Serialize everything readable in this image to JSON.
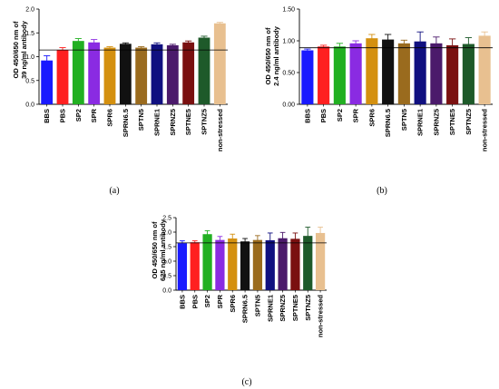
{
  "colors": [
    "#1a1aff",
    "#ff2020",
    "#22b022",
    "#8a2be2",
    "#d4900f",
    "#111111",
    "#9a6b1e",
    "#101080",
    "#4b1a6b",
    "#7a1010",
    "#1e5a2a",
    "#e8c090"
  ],
  "chart_data": [
    {
      "type": "bar",
      "panel_label": "(a)",
      "ylabel_lines": [
        "OD 450/650 nm of",
        "39 ng/ml antibody"
      ],
      "categories": [
        "BBS",
        "PBS",
        "SP2",
        "SPR",
        "SPR6",
        "SPRN6.5",
        "SPTN5",
        "SPRNE1",
        "SPRNZ5",
        "SPTNE5",
        "SPTNZ5",
        "non-stressed"
      ],
      "values": [
        0.92,
        1.14,
        1.33,
        1.3,
        1.19,
        1.27,
        1.19,
        1.26,
        1.24,
        1.3,
        1.4,
        1.7
      ],
      "errors": [
        0.1,
        0.05,
        0.05,
        0.06,
        0.02,
        0.02,
        0.02,
        0.03,
        0.02,
        0.03,
        0.03,
        0.02
      ],
      "reference_line": 1.14,
      "ylim": [
        0,
        2.0
      ],
      "yticks": [
        "0.0",
        "0.5",
        "1.0",
        "1.5",
        "2.0"
      ]
    },
    {
      "type": "bar",
      "panel_label": "(b)",
      "ylabel_lines": [
        "OD 450/650 nm of",
        "2.4 ng/ml antibody"
      ],
      "categories": [
        "BBS",
        "PBS",
        "SP2",
        "SPR",
        "SPR6",
        "SPRN6.5",
        "SPTN5",
        "SPRNE1",
        "SPRNZ5",
        "SPTNE5",
        "SPTNZ5",
        "non-stressed"
      ],
      "values": [
        0.85,
        0.91,
        0.91,
        0.96,
        1.04,
        1.02,
        0.96,
        0.99,
        0.96,
        0.93,
        0.95,
        1.08
      ],
      "errors": [
        0.02,
        0.02,
        0.05,
        0.04,
        0.06,
        0.08,
        0.05,
        0.15,
        0.1,
        0.1,
        0.1,
        0.06
      ],
      "reference_line": 0.89,
      "ylim": [
        0,
        1.5
      ],
      "yticks": [
        "0.00",
        "0.50",
        "1.00",
        "1.50"
      ]
    },
    {
      "type": "bar",
      "panel_label": "(c)",
      "ylabel_lines": [
        "OD 450/650 nm of",
        "625 ng/ml antibody"
      ],
      "categories": [
        "BBS",
        "PBS",
        "SP2",
        "SPR",
        "SPR6",
        "SPRN6.5",
        "SPTN5",
        "SPRNE1",
        "SPRNZ5",
        "SPTNE5",
        "SPTNZ5",
        "non-stressed"
      ],
      "values": [
        1.62,
        1.65,
        1.93,
        1.73,
        1.78,
        1.68,
        1.73,
        1.72,
        1.79,
        1.77,
        1.87,
        1.97
      ],
      "errors": [
        0.08,
        0.05,
        0.12,
        0.12,
        0.15,
        0.1,
        0.15,
        0.25,
        0.2,
        0.2,
        0.3,
        0.2
      ],
      "reference_line": 1.63,
      "ylim": [
        0,
        2.5
      ],
      "yticks": [
        "0.0",
        "0.5",
        "1.0",
        "1.5",
        "2.0",
        "2.5"
      ]
    }
  ]
}
